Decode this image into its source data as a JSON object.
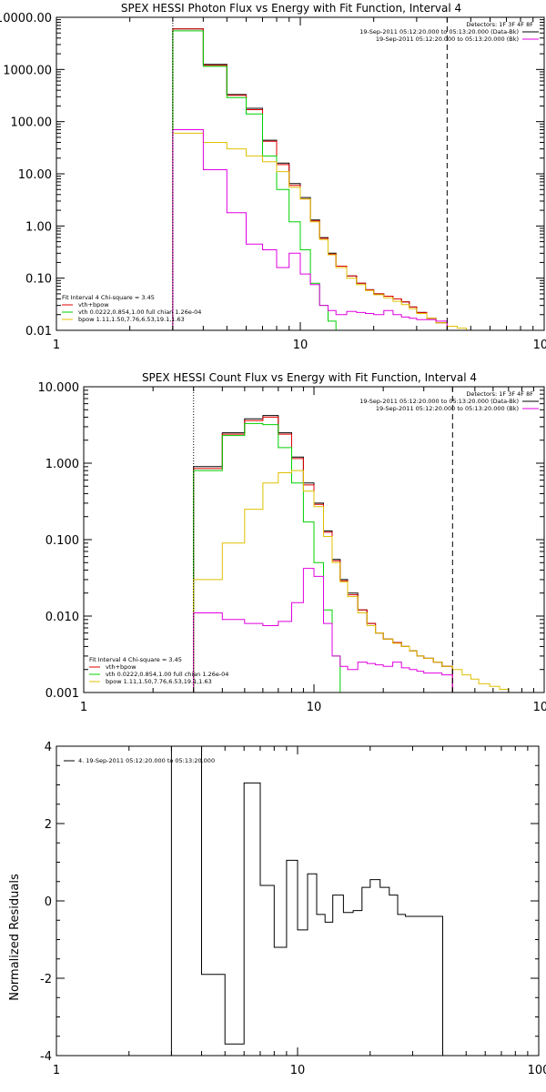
{
  "chart_data": [
    {
      "type": "line",
      "title": "SPEX HESSI Photon Flux vs Energy with Fit Function, Interval 4",
      "x_scale": "log",
      "y_scale": "log",
      "xlim": [
        1,
        100
      ],
      "ylim": [
        0.01,
        10000
      ],
      "x_ticks": [
        {
          "value": 1,
          "label": "1"
        },
        {
          "value": 10,
          "label": "10"
        },
        {
          "value": 100,
          "label": "100"
        }
      ],
      "y_ticks": [
        {
          "value": 0.01,
          "label": "0.01"
        },
        {
          "value": 0.1,
          "label": "0.10"
        },
        {
          "value": 1,
          "label": "1.00"
        },
        {
          "value": 10,
          "label": "10.00"
        },
        {
          "value": 100,
          "label": "100.00"
        },
        {
          "value": 1000,
          "label": "1000.00"
        },
        {
          "value": 10000,
          "label": "10000.00"
        }
      ],
      "legend_top": [
        {
          "text": "Detectors: 1F 3F 4F 8F",
          "color": "#000000",
          "line": false
        },
        {
          "text": "19-Sep-2011 05:12:20.000 to 05:13:20.000 (Data-Bk)",
          "color": "#000000",
          "line": true
        },
        {
          "text": "19-Sep-2011 05:12:20.000 to 05:13:20.000 (Bk)",
          "color": "#e000e0",
          "line": true
        }
      ],
      "legend_bottom": [
        {
          "text": "Fit Interval 4   Chi-square = 3.45",
          "color": "#000000",
          "line": false
        },
        {
          "text": "vth+bpow",
          "color": "#e00000",
          "line": true
        },
        {
          "text": "vth 0.0222,0.854,1.00  full chian 1.26e-04",
          "color": "#00d000",
          "line": true
        },
        {
          "text": "bpow 1.11,1.50,7.76,6.53,19.1,1.63",
          "color": "#e0c000",
          "line": true
        }
      ],
      "vlines": [
        {
          "x": 3,
          "style": "dotted",
          "color": "#000000"
        },
        {
          "x": 40,
          "style": "dashed",
          "color": "#000000"
        }
      ],
      "edges": [
        3,
        4,
        5,
        6,
        7,
        8,
        9,
        10,
        11,
        12,
        13,
        14,
        15.5,
        17,
        18.5,
        20,
        22,
        24,
        26,
        28,
        30,
        33,
        36,
        40,
        44,
        48,
        52
      ],
      "series": [
        {
          "name": "Data-Bk",
          "color": "#000000",
          "values": [
            6000,
            1250,
            330,
            180,
            44,
            16,
            6.5,
            3.5,
            1.3,
            0.6,
            0.3,
            0.17,
            0.11,
            0.08,
            0.06,
            0.05,
            0.045,
            0.04,
            0.035,
            0.028,
            0.022,
            0.017,
            0.014,
            null,
            null,
            null
          ]
        },
        {
          "name": "vth+bpow",
          "color": "#e00000",
          "values": [
            6000,
            1200,
            320,
            170,
            42,
            15,
            6.0,
            3.3,
            1.25,
            0.58,
            0.29,
            0.17,
            0.11,
            0.08,
            0.06,
            0.05,
            0.045,
            0.04,
            0.035,
            0.028,
            0.022,
            0.017,
            0.014,
            null,
            null,
            null
          ]
        },
        {
          "name": "vth",
          "color": "#00d000",
          "values": [
            5500,
            1150,
            290,
            140,
            22,
            5.0,
            1.2,
            0.35,
            0.08,
            0.03,
            0.015,
            null,
            null,
            null,
            null,
            null,
            null,
            null,
            null,
            null,
            null,
            null,
            null,
            null,
            null,
            null
          ]
        },
        {
          "name": "bpow",
          "color": "#e0c000",
          "values": [
            60,
            40,
            30,
            22,
            17,
            11,
            5.5,
            3.3,
            1.2,
            0.55,
            0.28,
            0.16,
            0.1,
            0.075,
            0.058,
            0.048,
            0.042,
            0.036,
            0.031,
            0.026,
            0.021,
            0.017,
            0.014,
            0.012,
            0.011,
            0.01
          ]
        },
        {
          "name": "Bk",
          "color": "#e000e0",
          "values": [
            70,
            12,
            1.8,
            0.45,
            0.35,
            0.16,
            0.3,
            0.12,
            0.075,
            0.03,
            0.024,
            0.02,
            0.023,
            0.022,
            0.021,
            0.02,
            0.024,
            0.02,
            0.018,
            0.017,
            0.016,
            0.016,
            0.015,
            null,
            null,
            null
          ]
        }
      ]
    },
    {
      "type": "line",
      "title": "SPEX HESSI Count Flux vs Energy with Fit Function, Interval 4",
      "x_scale": "log",
      "y_scale": "log",
      "xlim": [
        1,
        100
      ],
      "ylim": [
        0.001,
        10
      ],
      "x_ticks": [
        {
          "value": 1,
          "label": "1"
        },
        {
          "value": 10,
          "label": "10"
        },
        {
          "value": 100,
          "label": "100"
        }
      ],
      "y_ticks": [
        {
          "value": 0.001,
          "label": "0.001"
        },
        {
          "value": 0.01,
          "label": "0.010"
        },
        {
          "value": 0.1,
          "label": "0.100"
        },
        {
          "value": 1,
          "label": "1.000"
        },
        {
          "value": 10,
          "label": "10.000"
        }
      ],
      "legend_top": [
        {
          "text": "Detectors: 1F 3F 4F 8F",
          "color": "#000000",
          "line": false
        },
        {
          "text": "19-Sep-2011 05:12:20.000 to 05:13:20.000 (Data-Bk)",
          "color": "#000000",
          "line": true
        },
        {
          "text": "19-Sep-2011 05:12:20.000 to 05:13:20.000 (Bk)",
          "color": "#e000e0",
          "line": true
        }
      ],
      "legend_bottom": [
        {
          "text": "Fit Interval 4   Chi-square = 3.45",
          "color": "#000000",
          "line": false
        },
        {
          "text": "vth+bpow",
          "color": "#e00000",
          "line": true
        },
        {
          "text": "vth 0.0222,0.854,1.00  full chian 1.26e-04",
          "color": "#00d000",
          "line": true
        },
        {
          "text": "bpow 1.11,1.50,7.76,6.53,19.1,1.63",
          "color": "#e0c000",
          "line": true
        }
      ],
      "vlines": [
        {
          "x": 3,
          "style": "dotted",
          "color": "#000000"
        },
        {
          "x": 40,
          "style": "dashed",
          "color": "#000000"
        }
      ],
      "edges": [
        3,
        4,
        5,
        6,
        7,
        8,
        9,
        10,
        11,
        12,
        13,
        14,
        15.5,
        17,
        18.5,
        20,
        22,
        24,
        26,
        28,
        30,
        33,
        36,
        40,
        44,
        48,
        52,
        58,
        64,
        70,
        76
      ],
      "series": [
        {
          "name": "Data-Bk",
          "color": "#000000",
          "values": [
            0.9,
            2.5,
            3.8,
            4.2,
            2.5,
            1.2,
            0.55,
            0.3,
            0.13,
            0.055,
            0.03,
            0.02,
            0.012,
            0.008,
            0.006,
            0.005,
            0.0045,
            0.004,
            0.0035,
            0.003,
            0.0028,
            0.0025,
            0.0022,
            null,
            null,
            null,
            null,
            null,
            null,
            null
          ]
        },
        {
          "name": "vth+bpow",
          "color": "#e00000",
          "values": [
            0.85,
            2.4,
            3.6,
            4.0,
            2.4,
            1.15,
            0.52,
            0.29,
            0.125,
            0.053,
            0.029,
            0.019,
            0.012,
            0.008,
            0.006,
            0.005,
            0.0045,
            0.004,
            0.0035,
            0.003,
            0.0028,
            0.0025,
            0.0022,
            null,
            null,
            null,
            null,
            null,
            null,
            null
          ]
        },
        {
          "name": "vth",
          "color": "#00d000",
          "values": [
            0.8,
            2.3,
            3.3,
            3.2,
            1.6,
            0.55,
            0.17,
            0.05,
            0.012,
            0.003,
            null,
            null,
            null,
            null,
            null,
            null,
            null,
            null,
            null,
            null,
            null,
            null,
            null,
            null,
            null,
            null,
            null,
            null,
            null,
            null
          ]
        },
        {
          "name": "bpow",
          "color": "#e0c000",
          "values": [
            0.03,
            0.09,
            0.25,
            0.55,
            0.75,
            0.8,
            0.43,
            0.27,
            0.11,
            0.05,
            0.028,
            0.018,
            0.011,
            0.0075,
            0.006,
            0.005,
            0.0044,
            0.004,
            0.0035,
            0.003,
            0.0028,
            0.0025,
            0.0022,
            0.002,
            0.0017,
            0.0015,
            0.0013,
            0.0012,
            0.0011,
            0.001
          ]
        },
        {
          "name": "Bk",
          "color": "#e000e0",
          "values": [
            0.011,
            0.009,
            0.008,
            0.0075,
            0.0085,
            0.015,
            0.042,
            0.033,
            0.008,
            0.003,
            0.0022,
            0.002,
            0.0025,
            0.0024,
            0.0023,
            0.0022,
            0.0025,
            0.0021,
            0.002,
            0.0019,
            0.0018,
            0.0018,
            0.0017,
            null,
            null,
            null,
            null,
            null,
            null,
            null
          ]
        }
      ]
    },
    {
      "type": "line",
      "title": "",
      "ylabel": "Normalized Residuals",
      "x_scale": "log",
      "y_scale": "linear",
      "xlim": [
        1,
        100
      ],
      "ylim": [
        -4,
        4
      ],
      "x_ticks": [
        {
          "value": 1,
          "label": "1"
        },
        {
          "value": 10,
          "label": "10"
        },
        {
          "value": 100,
          "label": "100"
        }
      ],
      "y_ticks": [
        {
          "value": -4,
          "label": "-4"
        },
        {
          "value": -2,
          "label": "-2"
        },
        {
          "value": 0,
          "label": "0"
        },
        {
          "value": 2,
          "label": "2"
        },
        {
          "value": 4,
          "label": "4"
        }
      ],
      "legend_top": [
        {
          "text": "4. 19-Sep-2011 05:12:20.000 to 05:13:20.000",
          "color": "#000000",
          "line": true
        }
      ],
      "legend_bottom": [],
      "vlines": [],
      "edges": [
        3,
        4,
        5,
        6,
        7,
        8,
        9,
        10,
        11,
        12,
        13,
        14,
        15.5,
        17,
        18.5,
        20,
        22,
        24,
        26,
        28,
        30,
        33,
        36,
        40
      ],
      "series": [
        {
          "name": "Residuals",
          "color": "#000000",
          "values": [
            4.0,
            -1.9,
            -3.7,
            3.05,
            0.4,
            -1.2,
            1.05,
            -0.75,
            0.7,
            -0.35,
            -0.55,
            0.15,
            -0.3,
            -0.25,
            0.35,
            0.55,
            0.35,
            0.15,
            -0.35,
            -0.4,
            -0.4,
            -0.4,
            -0.4
          ]
        }
      ]
    }
  ]
}
